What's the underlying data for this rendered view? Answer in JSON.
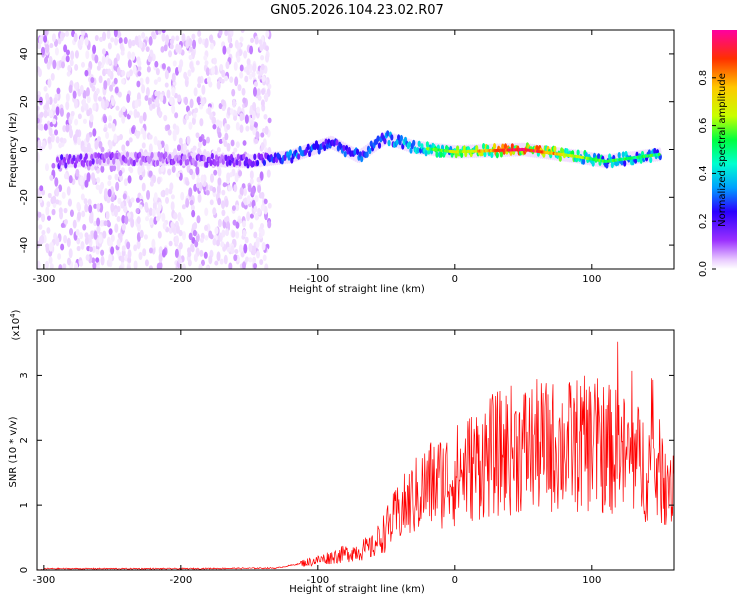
{
  "title": "GN05.2026.104.23.02.R07",
  "chart_data": [
    {
      "type": "heatmap",
      "title": "GN05.2026.104.23.02.R07",
      "xlabel": "Height of straight line (km)",
      "ylabel": "Frequency (Hz)",
      "xlim": [
        -305,
        160
      ],
      "ylim": [
        -50,
        50
      ],
      "xticks": [
        -300,
        -200,
        -100,
        0,
        100
      ],
      "yticks": [
        -40,
        -20,
        0,
        20,
        40
      ],
      "colorbar": {
        "label": "Normalized spectral amplitude",
        "range": [
          0,
          1
        ],
        "ticks": [
          0.0,
          0.2,
          0.4,
          0.6,
          0.8
        ],
        "colors": [
          "#ffffff",
          "#e8c8ff",
          "#9b30ff",
          "#2a00ff",
          "#00a0ff",
          "#00ffd0",
          "#00ff40",
          "#c8ff00",
          "#ffc800",
          "#ff3000",
          "#ff00a0"
        ]
      },
      "description_series": [
        {
          "name": "noise band",
          "x_range": [
            -305,
            -135
          ],
          "y_range": [
            -50,
            50
          ],
          "amplitude": 0.1
        },
        {
          "name": "ridge",
          "points": [
            {
              "x": -290,
              "y": -5,
              "a": 0.25
            },
            {
              "x": -250,
              "y": -4,
              "a": 0.2
            },
            {
              "x": -200,
              "y": -4,
              "a": 0.2
            },
            {
              "x": -150,
              "y": -5,
              "a": 0.25
            },
            {
              "x": -120,
              "y": -3,
              "a": 0.4
            },
            {
              "x": -90,
              "y": 3,
              "a": 0.35
            },
            {
              "x": -70,
              "y": -3,
              "a": 0.35
            },
            {
              "x": -50,
              "y": 5,
              "a": 0.4
            },
            {
              "x": -30,
              "y": 1,
              "a": 0.5
            },
            {
              "x": 0,
              "y": -1,
              "a": 0.6
            },
            {
              "x": 50,
              "y": 0,
              "a": 0.9
            },
            {
              "x": 90,
              "y": -3,
              "a": 0.6
            },
            {
              "x": 110,
              "y": -5,
              "a": 0.5
            },
            {
              "x": 150,
              "y": -2,
              "a": 0.5
            }
          ]
        }
      ]
    },
    {
      "type": "line",
      "xlabel": "Height of straight line (km)",
      "ylabel": "SNR (10 * v/v)",
      "y_scale_label": "(x10",
      "y_scale_exp": "4",
      "xlim": [
        -305,
        160
      ],
      "ylim": [
        0,
        3.7
      ],
      "xticks": [
        -300,
        -200,
        -100,
        0,
        100
      ],
      "yticks": [
        0,
        1,
        2,
        3
      ],
      "color": "#ff0000",
      "series": [
        {
          "name": "SNR",
          "x": [
            -300,
            -200,
            -130,
            -100,
            -80,
            -60,
            -40,
            -20,
            0,
            20,
            40,
            60,
            80,
            100,
            120,
            140,
            160
          ],
          "y": [
            0.02,
            0.02,
            0.03,
            0.15,
            0.25,
            0.35,
            0.9,
            1.3,
            1.45,
            1.7,
            1.85,
            1.9,
            1.9,
            1.95,
            1.8,
            1.6,
            1.4
          ]
        }
      ]
    }
  ]
}
